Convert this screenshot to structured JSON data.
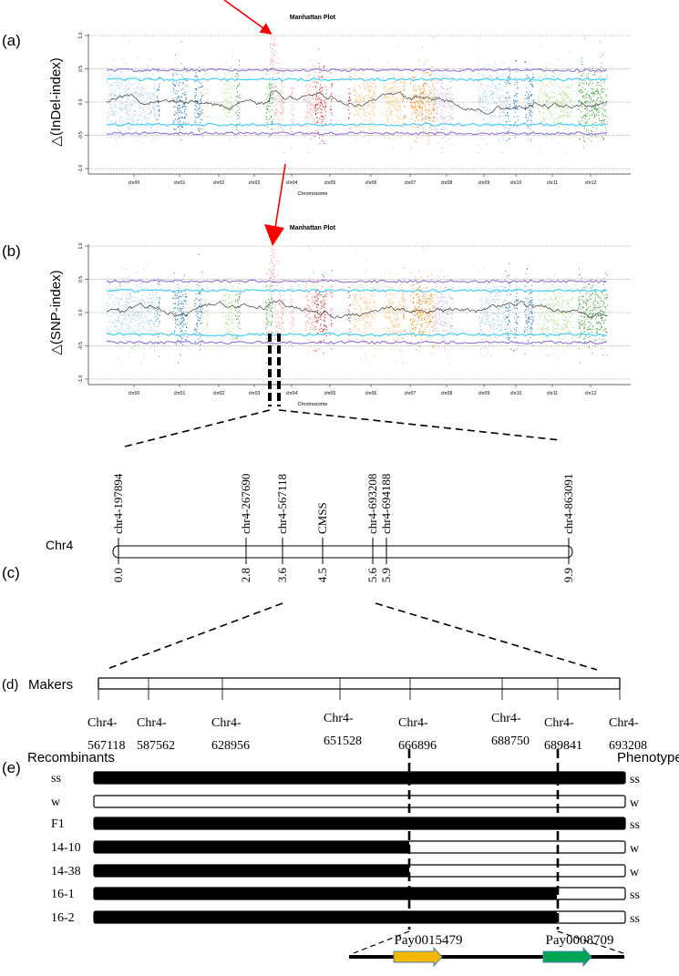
{
  "panels": {
    "a": "(a)",
    "b": "(b)",
    "c": "(c)",
    "d": "(d)",
    "e": "(e)"
  },
  "chart_data": [
    {
      "type": "scatter",
      "title": "Manhattan Plot",
      "xlabel": "Chromosome",
      "ylabel": "△(InDel-index)",
      "ylim": [
        -1.0,
        1.0
      ],
      "yticks": [
        "1.0",
        "0.5",
        "0.0",
        "-0.5",
        "-1.0"
      ],
      "ytick_values": [
        1.0,
        0.5,
        0.0,
        -0.5,
        -1.0
      ],
      "thresholds": {
        "purple_upper": 0.48,
        "cyan_upper": 0.34,
        "cyan_lower": -0.34,
        "purple_lower": -0.47
      },
      "peak": {
        "chromosome": "chr04",
        "value": 1.0
      },
      "chromosomes": [
        "chr00",
        "chr01",
        "chr02",
        "chr03",
        "chr04",
        "chr05",
        "chr06",
        "chr07",
        "chr08",
        "chr09",
        "chr10",
        "chr11",
        "chr12"
      ]
    },
    {
      "type": "scatter",
      "title": "Manhattan Plot",
      "xlabel": "Chromosome",
      "ylabel": "△(SNP-index)",
      "ylim": [
        -1.0,
        1.0
      ],
      "yticks": [
        "1.0",
        "0.5",
        "0.0",
        "-0.5",
        "-1.0"
      ],
      "ytick_values": [
        1.0,
        0.5,
        0.0,
        -0.5,
        -1.0
      ],
      "thresholds": {
        "purple_upper": 0.47,
        "cyan_upper": 0.33,
        "cyan_lower": -0.33,
        "purple_lower": -0.45
      },
      "peak": {
        "chromosome": "chr04",
        "value": 1.0
      },
      "chromosomes": [
        "chr00",
        "chr01",
        "chr02",
        "chr03",
        "chr04",
        "chr05",
        "chr06",
        "chr07",
        "chr08",
        "chr09",
        "chr10",
        "chr11",
        "chr12"
      ]
    }
  ],
  "colors": {
    "chr00": "#a6cee3",
    "chr01": "#1f78b4",
    "chr02": "#b2df8a",
    "chr03": "#33a02c",
    "chr04": "#fb9a99",
    "chr05": "#e31a1c",
    "chr06": "#fdbf6f",
    "chr07": "#ff7f00",
    "chr08": "#cab2d6",
    "chr09": "#a6cee3",
    "chr10": "#1f78b4",
    "chr11": "#b2df8a",
    "chr12": "#33a02c",
    "purple": "#9370db",
    "cyan": "#33ccff",
    "arrow": "#ff0000",
    "gene1": "#f5b800",
    "gene2": "#00a651",
    "gene_border": "#4f81bd"
  },
  "linkage_map": {
    "chromosome": "Chr4",
    "markers": [
      {
        "name": "chr4-197894",
        "cm": "0.0"
      },
      {
        "name": "chr4-267690",
        "cm": "2.8"
      },
      {
        "name": "chr4-567118",
        "cm": "3.6"
      },
      {
        "name": "CMSS",
        "cm": "4.5"
      },
      {
        "name": "chr4-693208",
        "cm": "5.6"
      },
      {
        "name": "chr4-694188",
        "cm": "5.9"
      },
      {
        "name": "chr4-863091",
        "cm": "9.9"
      }
    ]
  },
  "fine_map": {
    "label": "Makers",
    "markers": [
      {
        "prefix": "Chr4-",
        "pos": "567118"
      },
      {
        "prefix": "Chr4-",
        "pos": "587562"
      },
      {
        "prefix": "Chr4-",
        "pos": "628956"
      },
      {
        "prefix": "Chr4-",
        "pos": "651528"
      },
      {
        "prefix": "Chr4-",
        "pos": "666896"
      },
      {
        "prefix": "Chr4-",
        "pos": "688750"
      },
      {
        "prefix": "Chr4-",
        "pos": "689841"
      },
      {
        "prefix": "Chr4-",
        "pos": "693208"
      }
    ]
  },
  "recombinants": {
    "header_left": "Recombinants",
    "header_right": "Phenotype",
    "rows": [
      {
        "name": "ss",
        "phenotype": "ss",
        "genotype": "black"
      },
      {
        "name": "w",
        "phenotype": "w",
        "genotype": "white"
      },
      {
        "name": "F1",
        "phenotype": "ss",
        "genotype": "black"
      },
      {
        "name": "14-10",
        "phenotype": "w",
        "genotype": "black-to-666896"
      },
      {
        "name": "14-38",
        "phenotype": "w",
        "genotype": "black-to-666896"
      },
      {
        "name": "16-1",
        "phenotype": "ss",
        "genotype": "black-to-689841"
      },
      {
        "name": "16-2",
        "phenotype": "ss",
        "genotype": "black-to-689841"
      }
    ]
  },
  "genes": [
    {
      "name": "Pay0015479"
    },
    {
      "name": "Pay0008709"
    }
  ]
}
